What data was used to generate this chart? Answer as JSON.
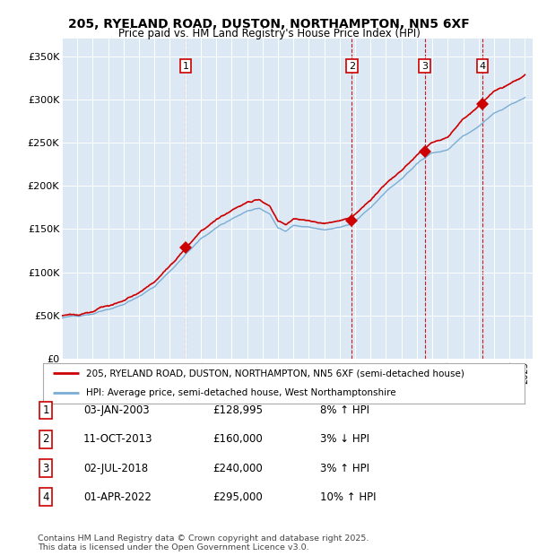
{
  "title_line1": "205, RYELAND ROAD, DUSTON, NORTHAMPTON, NN5 6XF",
  "title_line2": "Price paid vs. HM Land Registry's House Price Index (HPI)",
  "background_color": "#dce9f5",
  "plot_bg_color": "#dce9f5",
  "ylim": [
    0,
    370000
  ],
  "yticks": [
    0,
    50000,
    100000,
    150000,
    200000,
    250000,
    300000,
    350000
  ],
  "ytick_labels": [
    "£0",
    "£50K",
    "£100K",
    "£150K",
    "£200K",
    "£250K",
    "£300K",
    "£350K"
  ],
  "hpi_color": "#7aadd4",
  "price_color": "#cc0000",
  "t1_year": 2003.01,
  "t1_price": 128995,
  "t2_year": 2013.78,
  "t2_price": 160000,
  "t3_year": 2018.5,
  "t3_price": 240000,
  "t4_year": 2022.25,
  "t4_price": 295000,
  "transaction_details": [
    {
      "num": "1",
      "date": "03-JAN-2003",
      "price": "£128,995",
      "hpi": "8% ↑ HPI"
    },
    {
      "num": "2",
      "date": "11-OCT-2013",
      "price": "£160,000",
      "hpi": "3% ↓ HPI"
    },
    {
      "num": "3",
      "date": "02-JUL-2018",
      "price": "£240,000",
      "hpi": "3% ↑ HPI"
    },
    {
      "num": "4",
      "date": "01-APR-2022",
      "price": "£295,000",
      "hpi": "10% ↑ HPI"
    }
  ],
  "legend_price_label": "205, RYELAND ROAD, DUSTON, NORTHAMPTON, NN5 6XF (semi-detached house)",
  "legend_hpi_label": "HPI: Average price, semi-detached house, West Northamptonshire",
  "footer": "Contains HM Land Registry data © Crown copyright and database right 2025.\nThis data is licensed under the Open Government Licence v3.0.",
  "xstart_year": 1995,
  "xend_year": 2025
}
